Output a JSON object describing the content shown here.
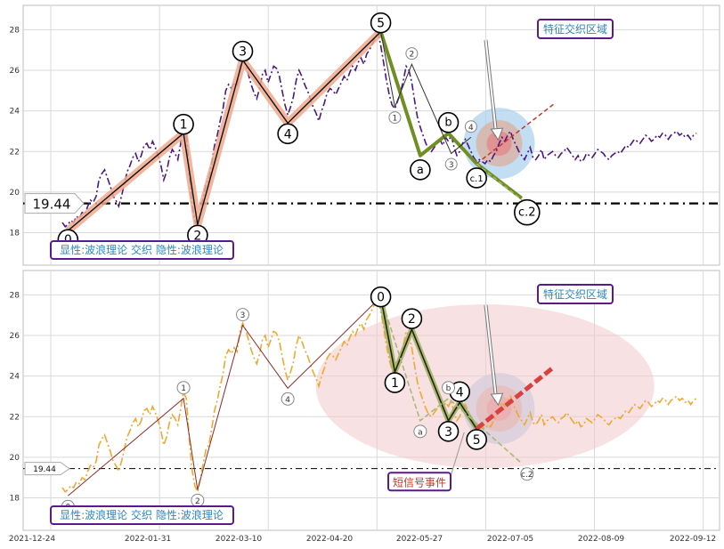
{
  "chart_data": [
    {
      "type": "line",
      "panel": "top",
      "ylim": [
        16.4,
        29.2
      ],
      "yticks": [
        18,
        20,
        22,
        24,
        26,
        28
      ],
      "grid": true,
      "price_line": 19.44,
      "price_label": "19.44",
      "legend": "显性:波浪理论 交织 隐性:波浪理论",
      "feature_label": "特征交织区域",
      "price_series": {
        "x": [
          0,
          1,
          2,
          3,
          4,
          5,
          6,
          7,
          8,
          9,
          10,
          11,
          12,
          13,
          14,
          15,
          16,
          17,
          18,
          19,
          20,
          21,
          22,
          23,
          24,
          25,
          26,
          27,
          28,
          29,
          30,
          31,
          32,
          33,
          34,
          35,
          36,
          37,
          38,
          39,
          40,
          41,
          42,
          43,
          44,
          45,
          46,
          47,
          48,
          49,
          50,
          51,
          52,
          53,
          54,
          55,
          56,
          57,
          58,
          59,
          60,
          61,
          62,
          63,
          64,
          65,
          66,
          67,
          68,
          69,
          70,
          71,
          72,
          73,
          74,
          75,
          76,
          77,
          78,
          79,
          80,
          81,
          82,
          83,
          84,
          85,
          86,
          87,
          88,
          89,
          90,
          91,
          92,
          93,
          94,
          95,
          96,
          97,
          98,
          99,
          100,
          101,
          102,
          103,
          104,
          105,
          106,
          107,
          108,
          109,
          110,
          111,
          112,
          113,
          114,
          115,
          116,
          117,
          118,
          119,
          120,
          121,
          122,
          123,
          124,
          125,
          126,
          127,
          128,
          129,
          130,
          131,
          132,
          133,
          134,
          135,
          136,
          137,
          138,
          139,
          140,
          141,
          142,
          143,
          144,
          145,
          146,
          147,
          148,
          149,
          150,
          151,
          152,
          153,
          154,
          155,
          156,
          157,
          158,
          159,
          160,
          161,
          162,
          163,
          164,
          165,
          166,
          167,
          168,
          169,
          170,
          171,
          172,
          173,
          174,
          175,
          176,
          177,
          178,
          179,
          180,
          181,
          182,
          183,
          184,
          185,
          186,
          187,
          188,
          189,
          190,
          191,
          192,
          193,
          194,
          195,
          196,
          197,
          198,
          199,
          200,
          201,
          202,
          203,
          204,
          205,
          206,
          207,
          208,
          209,
          210,
          211,
          212,
          213,
          214,
          215,
          216,
          217,
          218,
          219,
          220,
          221,
          222,
          223,
          224,
          225
        ],
        "y": [
          18.5,
          18.3,
          18.4,
          18.6,
          18.5,
          18.8,
          18.7,
          19.0,
          18.9,
          19.3,
          19.6,
          19.5,
          19.8,
          20.6,
          20.9,
          21.1,
          20.7,
          20.3,
          19.8,
          19.6,
          19.3,
          19.8,
          20.4,
          21.0,
          21.3,
          21.7,
          21.9,
          21.5,
          21.8,
          22.3,
          22.4,
          22.1,
          22.5,
          22.2,
          21.8,
          21.3,
          20.6,
          21.0,
          21.7,
          22.1,
          21.9,
          21.6,
          22.4,
          23.2,
          22.9,
          21.0,
          19.4,
          18.6,
          18.3,
          19.0,
          19.7,
          20.4,
          20.6,
          21.4,
          22.3,
          22.8,
          23.5,
          24.1,
          25.0,
          25.3,
          25.1,
          25.4,
          25.2,
          26.2,
          26.6,
          26.3,
          25.8,
          25.3,
          24.9,
          24.6,
          25.1,
          25.8,
          26.0,
          25.4,
          25.8,
          26.2,
          26.1,
          25.7,
          25.0,
          24.3,
          23.8,
          24.2,
          24.7,
          25.5,
          26.0,
          25.7,
          25.3,
          25.0,
          24.6,
          24.2,
          23.9,
          23.5,
          24.0,
          24.4,
          24.9,
          25.1,
          25.0,
          24.8,
          25.1,
          25.4,
          25.7,
          25.5,
          25.9,
          26.2,
          26.0,
          26.4,
          26.6,
          26.3,
          26.8,
          27.0,
          27.3,
          27.6,
          27.9,
          27.2,
          26.4,
          25.5,
          24.8,
          24.3,
          24.1,
          24.5,
          24.9,
          25.5,
          26.2,
          26.0,
          25.4,
          24.5,
          23.7,
          23.2,
          22.8,
          22.4,
          22.1,
          22.0,
          22.2,
          22.4,
          22.6,
          22.3,
          22.7,
          22.5,
          22.8,
          22.2,
          21.8,
          22.0,
          22.4,
          22.6,
          22.3,
          22.0,
          21.7,
          21.5,
          21.6,
          21.5,
          21.4,
          21.6,
          21.5,
          21.8,
          22.0,
          22.4,
          22.7,
          22.5,
          22.8,
          23.0,
          22.6,
          22.3,
          22.0,
          21.8,
          21.6,
          21.9,
          22.2,
          21.7,
          21.6,
          21.8,
          22.1,
          21.6,
          21.8,
          21.9,
          22.0,
          21.8,
          21.7,
          21.9,
          22.0,
          22.2,
          22.0,
          21.8,
          21.6,
          21.8,
          21.5,
          21.6,
          21.9,
          21.8,
          21.7,
          21.9,
          22.1,
          22.0,
          21.9,
          21.7,
          21.6,
          21.8,
          21.9,
          22.0,
          21.9,
          22.1,
          22.3,
          22.2,
          22.4,
          22.6,
          22.5,
          22.4,
          22.6,
          22.8,
          22.7,
          22.5,
          22.6,
          22.8,
          22.7,
          22.9,
          22.8,
          22.6,
          22.8,
          22.9,
          23.0,
          22.8,
          22.9,
          22.7,
          22.8,
          22.6,
          22.8,
          22.9
        ]
      },
      "wave_points": [
        {
          "label": "0",
          "x": 2,
          "y": 18.1
        },
        {
          "label": "1",
          "x": 43,
          "y": 22.9
        },
        {
          "label": "2",
          "x": 48,
          "y": 18.4
        },
        {
          "label": "3",
          "x": 64,
          "y": 26.5
        },
        {
          "label": "4",
          "x": 80,
          "y": 23.4
        },
        {
          "label": "5",
          "x": 113,
          "y": 27.9
        }
      ],
      "abc_points": [
        {
          "label": "a",
          "x": 127,
          "y": 21.8
        },
        {
          "label": "b",
          "x": 137,
          "y": 22.9
        },
        {
          "label": "c.1",
          "x": 147,
          "y": 21.4
        },
        {
          "label": "c.2",
          "x": 163,
          "y": 19.7
        }
      ],
      "alt_points": [
        {
          "label": "1",
          "x": 118,
          "y": 24.2
        },
        {
          "label": "2",
          "x": 124,
          "y": 26.3
        },
        {
          "label": "3",
          "x": 138,
          "y": 21.9
        },
        {
          "label": "4",
          "x": 145,
          "y": 22.7
        }
      ]
    },
    {
      "type": "line",
      "panel": "bottom",
      "ylim": [
        16.4,
        29.2
      ],
      "yticks": [
        18,
        20,
        22,
        24,
        26,
        28
      ],
      "grid": true,
      "price_line": 19.44,
      "price_label": "19.44",
      "legend": "显性:波浪理论 交织 隐性:波浪理论",
      "feature_label": "特征交织区域",
      "event_label": "短信号事件",
      "xticks": [
        "2021-12-24",
        "2022-01-31",
        "2022-03-10",
        "2022-04-20",
        "2022-05-27",
        "2022-07-05",
        "2022-08-09",
        "2022-09-12"
      ],
      "wave_points": [
        {
          "label": "0",
          "x": 113,
          "y": 27.9
        },
        {
          "label": "1",
          "x": 118,
          "y": 24.2
        },
        {
          "label": "2",
          "x": 124,
          "y": 26.3
        },
        {
          "label": "3",
          "x": 137,
          "y": 21.8
        },
        {
          "label": "4",
          "x": 141,
          "y": 22.7
        },
        {
          "label": "5",
          "x": 147,
          "y": 21.4
        }
      ],
      "small_points": [
        {
          "label": "0",
          "x": 2,
          "y": 18.1
        },
        {
          "label": "1",
          "x": 43,
          "y": 22.9
        },
        {
          "label": "2",
          "x": 48,
          "y": 18.4
        },
        {
          "label": "3",
          "x": 64,
          "y": 26.5
        },
        {
          "label": "4",
          "x": 80,
          "y": 23.4
        },
        {
          "label": "a",
          "x": 127,
          "y": 21.8
        },
        {
          "label": "b",
          "x": 137,
          "y": 22.9
        },
        {
          "label": "c.2",
          "x": 163,
          "y": 19.7
        }
      ]
    }
  ]
}
